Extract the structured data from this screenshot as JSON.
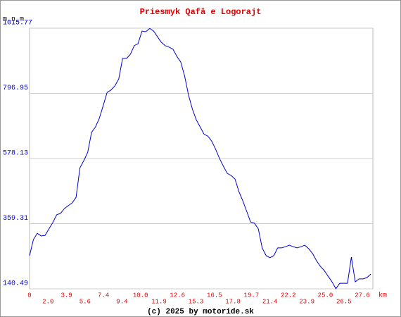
{
  "chart_data": {
    "type": "line",
    "title": "Priesmyk Qafâ  e Logorajt",
    "y_label": "m.n.m",
    "x_unit": "km",
    "footer": "(c) 2025 by motoride.sk",
    "ylim": [
      140.49,
      1015.77
    ],
    "yticks": [
      140.49,
      359.31,
      578.13,
      796.95,
      1015.77
    ],
    "grid": true,
    "color": "#0000cc",
    "xtick_labels": [
      "0",
      "2.0",
      "3.9",
      "5.6",
      "7.4",
      "9.4",
      "10.0",
      "11.9",
      "12.6",
      "15.3",
      "16.5",
      "17.8",
      "19.7",
      "21.4",
      "22.2",
      "23.9",
      "25.0",
      "26.5",
      "27.6"
    ],
    "values": [
      252,
      306,
      327,
      318,
      320,
      342,
      363,
      389,
      394,
      410,
      420,
      429,
      448,
      547,
      571,
      599,
      666,
      684,
      713,
      756,
      800,
      808,
      822,
      845,
      914,
      914,
      928,
      957,
      964,
      1006,
      1004,
      1015,
      1006,
      987,
      968,
      957,
      952,
      945,
      921,
      902,
      855,
      791,
      744,
      708,
      684,
      660,
      653,
      636,
      609,
      578,
      552,
      528,
      521,
      509,
      467,
      436,
      401,
      365,
      361,
      342,
      278,
      252,
      245,
      252,
      278,
      278,
      282,
      287,
      282,
      278,
      282,
      287,
      275,
      259,
      235,
      216,
      202,
      183,
      164,
      141,
      159,
      159,
      159,
      247,
      164,
      174,
      174,
      178,
      190
    ]
  }
}
